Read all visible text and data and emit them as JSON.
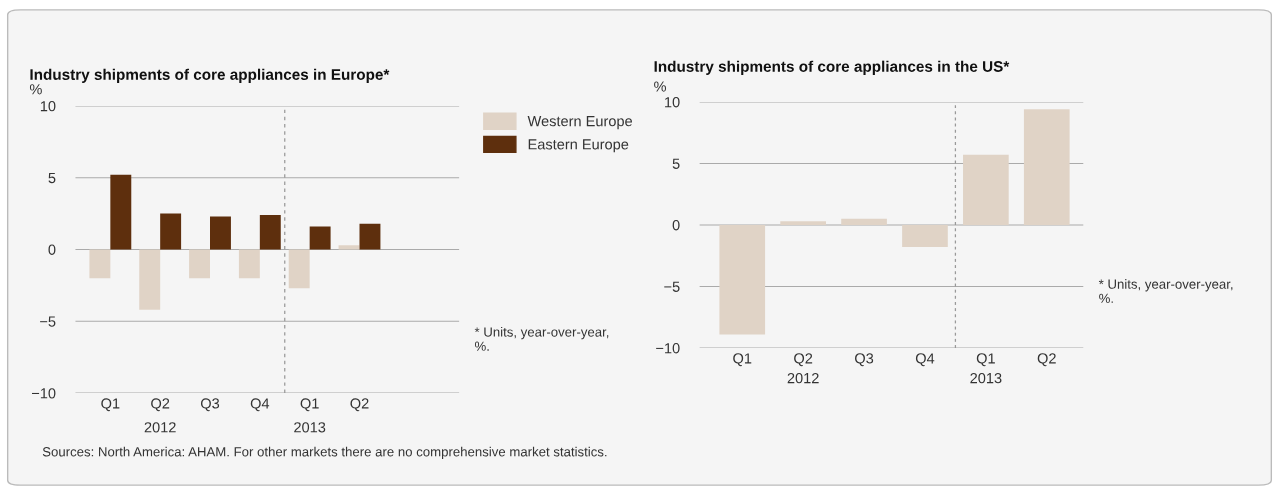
{
  "chart_data": [
    {
      "type": "bar",
      "title": "Industry shipments of core appliances in Europe*",
      "ylabel": "%",
      "categories": [
        "Q1",
        "Q2",
        "Q3",
        "Q4",
        "Q1",
        "Q2"
      ],
      "series": [
        {
          "name": "Western Europe",
          "color": "#e0d3c6",
          "values": [
            -2.0,
            -4.2,
            -2.0,
            -2.0,
            -2.7,
            0.3
          ]
        },
        {
          "name": "Eastern Europe",
          "color": "#5e2f0d",
          "values": [
            5.2,
            2.5,
            2.3,
            2.4,
            1.6,
            1.8
          ]
        }
      ],
      "ylim": [
        -10,
        10
      ],
      "grid": "y",
      "legend": "top right",
      "yticks": [
        -10,
        -5,
        0,
        5,
        10
      ],
      "annotations": [
        "2012",
        "2013",
        "* Units, year-over-year, %."
      ]
    },
    {
      "type": "bar",
      "title": "Industry shipments of core appliances in the US*",
      "ylabel": "%",
      "categories": [
        "Q1",
        "Q2",
        "Q3",
        "Q4",
        "Q1",
        "Q2"
      ],
      "series": [
        {
          "color": "#e0d3c6",
          "values": [
            -8.9,
            0.3,
            0.5,
            -1.8,
            5.7,
            9.4
          ]
        }
      ],
      "ylim": [
        -10,
        10
      ],
      "yticks": [
        -10,
        -5,
        0,
        5,
        10
      ],
      "grid": "y",
      "annotations": [
        "2012",
        "2013",
        "* Units, year-over-year, %.",
        "Sources: North America: AHAM. For other markets there are no comprehensive market statistics."
      ]
    }
  ]
}
